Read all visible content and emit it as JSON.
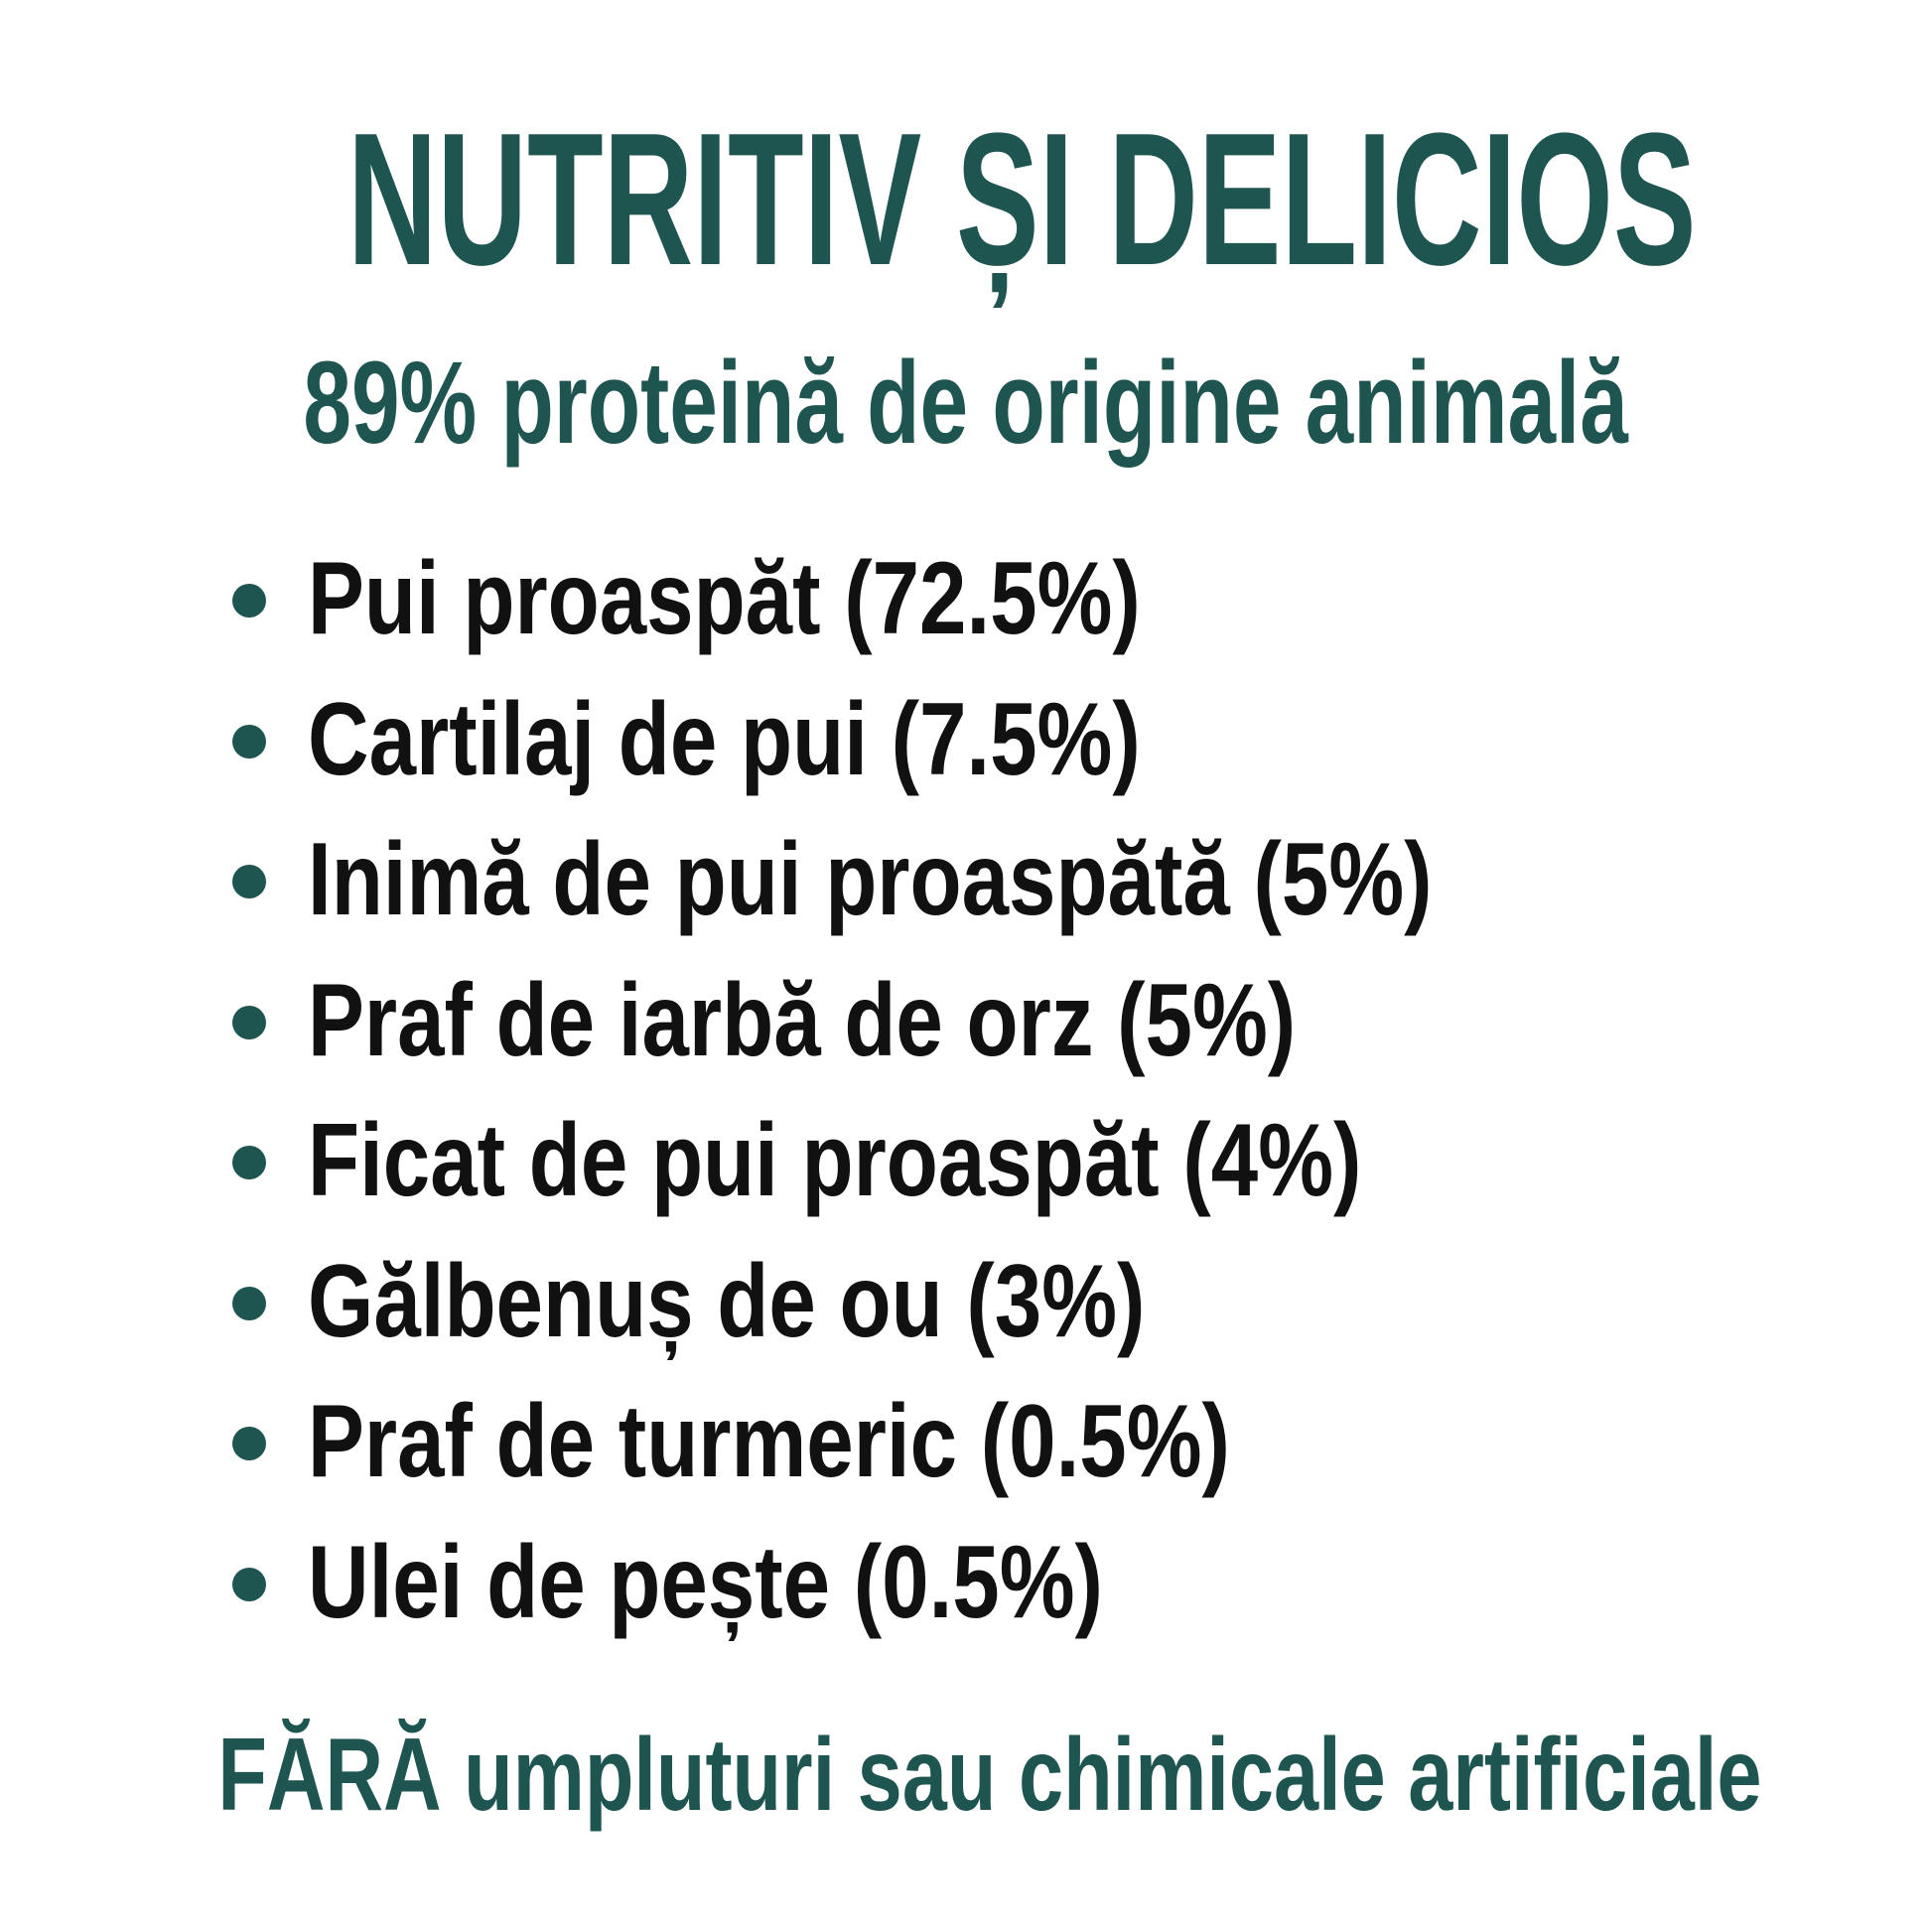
{
  "title": "NUTRITIV ȘI DELICIOS",
  "subtitle": "89% proteină de origine animală",
  "ingredients": [
    "Pui proaspăt (72.5%)",
    "Cartilaj de pui (7.5%)",
    "Inimă de pui proaspătă (5%)",
    "Praf de iarbă de orz (5%)",
    "Ficat de pui proaspăt (4%)",
    "Gălbenuș de ou (3%)",
    "Praf de turmeric (0.5%)",
    "Ulei de pește (0.5%)"
  ],
  "footer": "FĂRĂ umpluturi sau chimicale artificiale",
  "colors": {
    "accent": "#1e5550",
    "text": "#111111",
    "background": "#ffffff"
  }
}
